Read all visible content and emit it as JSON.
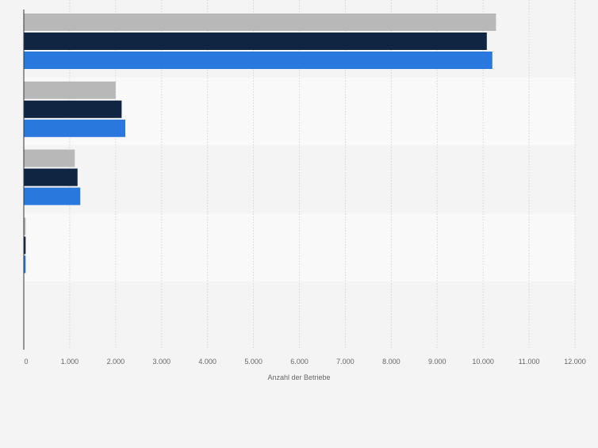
{
  "chart_data": {
    "type": "bar",
    "orientation": "horizontal",
    "categories": [
      "",
      "",
      "",
      "",
      ""
    ],
    "series": [
      {
        "color": "#b8b8b8",
        "values": [
          10280,
          2000,
          1110,
          40,
          0
        ]
      },
      {
        "color": "#0f2541",
        "values": [
          10080,
          2130,
          1170,
          40,
          0
        ]
      },
      {
        "color": "#2878dd",
        "values": [
          10200,
          2210,
          1230,
          40,
          0
        ]
      }
    ],
    "title": "",
    "xlabel": "Anzahl der Betriebe",
    "ylabel": "",
    "xlim": [
      0,
      12000
    ],
    "xticks": [
      0,
      1000,
      2000,
      3000,
      4000,
      5000,
      6000,
      7000,
      8000,
      9000,
      10000,
      11000,
      12000
    ],
    "xtick_labels": [
      "0",
      "1.000",
      "2.000",
      "3.000",
      "4.000",
      "5.000",
      "6.000",
      "7.000",
      "8.000",
      "9.000",
      "10.000",
      "11.000",
      "12.000"
    ],
    "grid": true,
    "legend": "none"
  }
}
